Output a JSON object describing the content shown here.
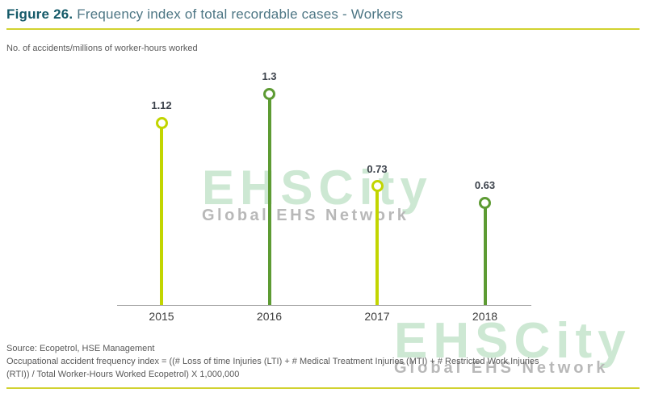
{
  "figure": {
    "label": "Figure 26.",
    "title_text": "Frequency index of total recordable cases - Workers",
    "subtitle": "No. of accidents/millions of worker-hours worked"
  },
  "chart_data": {
    "type": "lollipop",
    "title": "Frequency index of total recordable cases - Workers",
    "ylabel": "No. of accidents/millions of worker-hours worked",
    "categories": [
      "2015",
      "2016",
      "2017",
      "2018"
    ],
    "values": [
      1.12,
      1.3,
      0.73,
      0.63
    ],
    "value_labels": [
      "1.12",
      "1.3",
      "0.73",
      "0.63"
    ],
    "series_colors": [
      "#c2d500",
      "#5d9b33",
      "#c2d500",
      "#5d9b33"
    ],
    "ylim": [
      0,
      1.4
    ],
    "grid": false,
    "legend": false
  },
  "watermark": {
    "brand": "EHSCity",
    "tagline": "Global EHS Network",
    "brand_color": "#cde8d3",
    "tagline_color": "#b8b8b8"
  },
  "footer": {
    "source": "Source: Ecopetrol, HSE Management",
    "note_lines": [
      "Occupational accident frequency index = ((# Loss of time Injuries (LTI) + # Medical Treatment Injuries (MTI) + # Restricted Work Injuries",
      "(RTI)) / Total Worker-Hours Worked Ecopetrol) X 1,000,000"
    ]
  },
  "colors": {
    "accent_rule": "#d1d230",
    "title_label": "#155a69",
    "title_text": "#4d7684",
    "axis": "#a5a5a5",
    "yellow_green": "#c2d500",
    "green": "#5d9b33"
  }
}
